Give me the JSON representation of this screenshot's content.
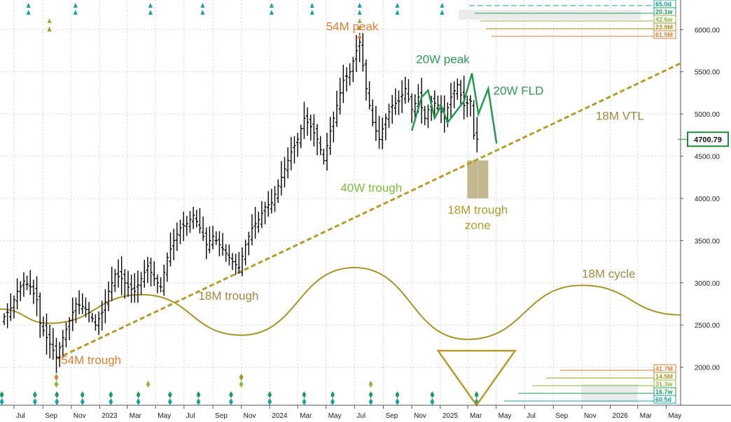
{
  "chart_data": {
    "type": "bar",
    "subtype": "ohlc-weekly",
    "ylim": [
      1550,
      6350
    ],
    "y_ticks": [
      2000,
      2500,
      3000,
      3500,
      4000,
      4500,
      5000,
      5500,
      6000
    ],
    "y_tick_labels": [
      "2000.00",
      "2500.00",
      "3000.00",
      "3500.00",
      "4000.00",
      "4500.00",
      "5000.00",
      "5500.00",
      "6000.00"
    ],
    "x_tick_labels": [
      "Jul",
      "Sep",
      "Nov",
      "2023",
      "Mar",
      "May",
      "Jul",
      "Sep",
      "Nov",
      "2024",
      "Mar",
      "May",
      "Jul",
      "Sep",
      "Nov",
      "2025",
      "Mar",
      "May",
      "Jul",
      "Sep",
      "Nov",
      "2026",
      "Mar",
      "May"
    ],
    "x_tick_dates": [
      "2022-07-01",
      "2022-09-01",
      "2022-11-01",
      "2023-01-01",
      "2023-03-01",
      "2023-05-01",
      "2023-07-01",
      "2023-09-01",
      "2023-11-01",
      "2024-01-01",
      "2024-03-01",
      "2024-05-01",
      "2024-07-01",
      "2024-09-01",
      "2024-11-01",
      "2025-01-01",
      "2025-03-01",
      "2025-05-01",
      "2025-07-01",
      "2025-09-01",
      "2025-11-01",
      "2026-01-01",
      "2026-03-01",
      "2026-05-01"
    ],
    "last_price": "4700.79",
    "price_series": {
      "name": "",
      "points": [
        {
          "date": "2022-06-10",
          "close": 2600
        },
        {
          "date": "2022-06-24",
          "close": 2700
        },
        {
          "date": "2022-07-08",
          "close": 2900
        },
        {
          "date": "2022-07-22",
          "close": 3020
        },
        {
          "date": "2022-08-05",
          "close": 2950
        },
        {
          "date": "2022-08-19",
          "close": 2800
        },
        {
          "date": "2022-08-26",
          "close": 2520
        },
        {
          "date": "2022-09-09",
          "close": 2350
        },
        {
          "date": "2022-09-23",
          "close": 2200
        },
        {
          "date": "2022-09-30",
          "close": 2120
        },
        {
          "date": "2022-10-14",
          "close": 2350
        },
        {
          "date": "2022-10-28",
          "close": 2550
        },
        {
          "date": "2022-11-11",
          "close": 2750
        },
        {
          "date": "2022-11-25",
          "close": 2720
        },
        {
          "date": "2022-12-09",
          "close": 2650
        },
        {
          "date": "2022-12-23",
          "close": 2500
        },
        {
          "date": "2023-01-06",
          "close": 2650
        },
        {
          "date": "2023-01-20",
          "close": 2900
        },
        {
          "date": "2023-02-03",
          "close": 3100
        },
        {
          "date": "2023-02-17",
          "close": 3050
        },
        {
          "date": "2023-03-03",
          "close": 2950
        },
        {
          "date": "2023-03-17",
          "close": 2900
        },
        {
          "date": "2023-03-31",
          "close": 3050
        },
        {
          "date": "2023-04-14",
          "close": 3200
        },
        {
          "date": "2023-04-28",
          "close": 3050
        },
        {
          "date": "2023-05-12",
          "close": 2950
        },
        {
          "date": "2023-05-26",
          "close": 3300
        },
        {
          "date": "2023-06-09",
          "close": 3500
        },
        {
          "date": "2023-06-23",
          "close": 3650
        },
        {
          "date": "2023-07-07",
          "close": 3700
        },
        {
          "date": "2023-07-21",
          "close": 3800
        },
        {
          "date": "2023-08-04",
          "close": 3650
        },
        {
          "date": "2023-08-18",
          "close": 3450
        },
        {
          "date": "2023-09-01",
          "close": 3550
        },
        {
          "date": "2023-09-15",
          "close": 3450
        },
        {
          "date": "2023-09-29",
          "close": 3350
        },
        {
          "date": "2023-10-13",
          "close": 3250
        },
        {
          "date": "2023-10-27",
          "close": 3180
        },
        {
          "date": "2023-11-10",
          "close": 3450
        },
        {
          "date": "2023-11-24",
          "close": 3650
        },
        {
          "date": "2023-12-08",
          "close": 3750
        },
        {
          "date": "2023-12-22",
          "close": 3900
        },
        {
          "date": "2024-01-05",
          "close": 3950
        },
        {
          "date": "2024-01-19",
          "close": 4150
        },
        {
          "date": "2024-02-02",
          "close": 4350
        },
        {
          "date": "2024-02-16",
          "close": 4550
        },
        {
          "date": "2024-03-01",
          "close": 4700
        },
        {
          "date": "2024-03-15",
          "close": 4950
        },
        {
          "date": "2024-03-29",
          "close": 4850
        },
        {
          "date": "2024-04-12",
          "close": 4700
        },
        {
          "date": "2024-04-26",
          "close": 4450
        },
        {
          "date": "2024-05-10",
          "close": 4800
        },
        {
          "date": "2024-05-24",
          "close": 5100
        },
        {
          "date": "2024-06-07",
          "close": 5400
        },
        {
          "date": "2024-06-21",
          "close": 5500
        },
        {
          "date": "2024-07-05",
          "close": 5750
        },
        {
          "date": "2024-07-12",
          "close": 5850
        },
        {
          "date": "2024-07-26",
          "close": 5300
        },
        {
          "date": "2024-08-09",
          "close": 4900
        },
        {
          "date": "2024-08-23",
          "close": 4700
        },
        {
          "date": "2024-09-06",
          "close": 4950
        },
        {
          "date": "2024-09-20",
          "close": 5100
        },
        {
          "date": "2024-10-04",
          "close": 5150
        },
        {
          "date": "2024-10-18",
          "close": 5300
        },
        {
          "date": "2024-11-01",
          "close": 5050
        },
        {
          "date": "2024-11-15",
          "close": 5200
        },
        {
          "date": "2024-11-29",
          "close": 4950
        },
        {
          "date": "2024-12-13",
          "close": 5150
        },
        {
          "date": "2024-12-27",
          "close": 5100
        },
        {
          "date": "2025-01-10",
          "close": 4950
        },
        {
          "date": "2025-01-24",
          "close": 5200
        },
        {
          "date": "2025-02-07",
          "close": 5350
        },
        {
          "date": "2025-02-21",
          "close": 5100
        },
        {
          "date": "2025-03-07",
          "close": 5150
        },
        {
          "date": "2025-03-14",
          "close": 4750
        },
        {
          "date": "2025-03-21",
          "close": 4700
        }
      ]
    },
    "fld_line": {
      "label": "20W FLD",
      "points": [
        {
          "date": "2024-11-01",
          "value": 4800
        },
        {
          "date": "2024-11-22",
          "value": 5200
        },
        {
          "date": "2024-12-06",
          "value": 5280
        },
        {
          "date": "2024-12-20",
          "value": 4950
        },
        {
          "date": "2025-01-03",
          "value": 5100
        },
        {
          "date": "2025-01-17",
          "value": 4900
        },
        {
          "date": "2025-02-07",
          "value": 5050
        },
        {
          "date": "2025-02-21",
          "value": 5150
        },
        {
          "date": "2025-03-10",
          "value": 5480
        },
        {
          "date": "2025-03-24",
          "value": 5000
        },
        {
          "date": "2025-04-07",
          "value": 5200
        },
        {
          "date": "2025-04-14",
          "value": 5300
        },
        {
          "date": "2025-05-02",
          "value": 4650
        }
      ]
    },
    "vtl_line": {
      "label": "18M VTL",
      "points": [
        {
          "date": "2022-09-30",
          "value": 2100
        },
        {
          "date": "2026-06-01",
          "value": 5600
        }
      ]
    },
    "cycle_line": {
      "label": "18M cycle",
      "points": [
        {
          "date": "2022-06-01",
          "value": 2690
        },
        {
          "date": "2022-09-15",
          "value": 2520
        },
        {
          "date": "2023-04-01",
          "value": 2860
        },
        {
          "date": "2023-11-01",
          "value": 2380
        },
        {
          "date": "2024-07-01",
          "value": 3180
        },
        {
          "date": "2025-03-01",
          "value": 2330
        },
        {
          "date": "2025-11-01",
          "value": 2970
        },
        {
          "date": "2026-06-01",
          "value": 2620
        }
      ]
    },
    "trough_zone": {
      "label": "18M trough zone",
      "start": "2025-02-28",
      "end": "2025-04-14",
      "low": 4000,
      "high": 4450
    },
    "annotations": [
      {
        "text": "54M peak",
        "color": "#e07e33",
        "date": "2024-05-01",
        "value": 5990
      },
      {
        "text": "20W peak",
        "color": "#2e9a55",
        "date": "2024-11-10",
        "value": 5600
      },
      {
        "text": "20W FLD",
        "color": "#2e9a55",
        "date": "2025-04-25",
        "value": 5230
      },
      {
        "text": "18M VTL",
        "color": "#9c8a40",
        "date": "2025-12-01",
        "value": 4930
      },
      {
        "text": "40W trough",
        "color": "#7cbb35",
        "date": "2024-06-01",
        "value": 4080
      },
      {
        "text": "18M trough",
        "color": "#9c8a40",
        "date": "2023-08-01",
        "value": 2800
      },
      {
        "text": "18M cycle",
        "color": "#9c8a40",
        "date": "2025-11-01",
        "value": 3060
      },
      {
        "text": "54M trough",
        "color": "#e07e33",
        "date": "2022-10-10",
        "value": 2040
      }
    ],
    "trough_zone_text": [
      "18M trough",
      "zone"
    ],
    "top_right_labels": [
      "65.0d",
      "20.1w",
      "42.6w",
      "23.9M",
      "61.5M"
    ],
    "bottom_right_labels": [
      "41.7M",
      "14.5M",
      "31.3w",
      "16.7w",
      "60.5d"
    ],
    "grid": true,
    "legend": "none"
  },
  "colors": {
    "price": "#000000",
    "fld": "#1f9a4e",
    "vtl": "#b49b2a",
    "cycle": "#a89227",
    "zone": "#b7aa7a",
    "grid": "#d3d3d3",
    "orange": "#e07e33",
    "teal": "#1aa199",
    "last_price_border": "#1f8a3a"
  }
}
